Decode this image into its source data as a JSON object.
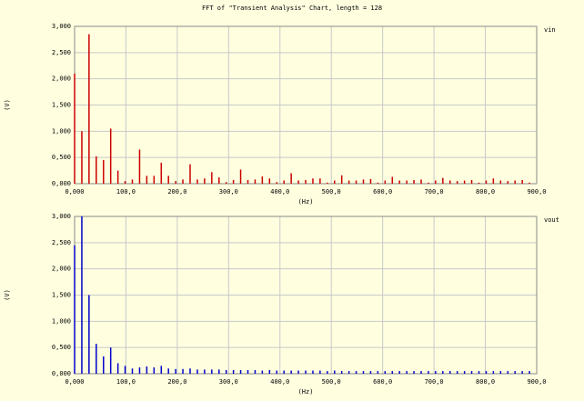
{
  "chart_data": [
    {
      "type": "bar",
      "title": "FFT of \"Transient Analysis\" Chart, length = 128",
      "xlabel": "(Hz)",
      "ylabel": "(V)",
      "x": [
        0,
        14.1,
        28.1,
        42.2,
        56.3,
        70.3,
        84.4,
        98.4,
        112.5,
        126.6,
        140.6,
        154.7,
        168.8,
        182.8,
        196.9,
        210.9,
        225,
        239.1,
        253.1,
        267.2,
        281.3,
        295.3,
        309.4,
        323.4,
        337.5,
        351.6,
        365.6,
        379.7,
        393.8,
        407.8,
        421.9,
        435.9,
        450,
        464.1,
        478.1,
        492.2,
        506.3,
        520.3,
        534.4,
        548.4,
        562.5,
        576.6,
        590.6,
        604.7,
        618.8,
        632.8,
        646.9,
        660.9,
        675,
        689.1,
        703.1,
        717.2,
        731.3,
        745.3,
        759.4,
        773.4,
        787.5,
        801.6,
        815.6,
        829.7,
        843.8,
        857.8,
        871.9,
        885.9
      ],
      "series": [
        {
          "name": "vin",
          "color": "#cc0000",
          "values": [
            2.1,
            1.0,
            2.85,
            0.52,
            0.45,
            1.05,
            0.25,
            0.05,
            0.08,
            0.65,
            0.15,
            0.15,
            0.4,
            0.15,
            0.05,
            0.08,
            0.37,
            0.08,
            0.1,
            0.22,
            0.12,
            0.03,
            0.07,
            0.27,
            0.07,
            0.08,
            0.14,
            0.1,
            0.03,
            0.06,
            0.2,
            0.06,
            0.07,
            0.1,
            0.1,
            0.02,
            0.06,
            0.16,
            0.06,
            0.06,
            0.08,
            0.09,
            0.02,
            0.06,
            0.13,
            0.06,
            0.06,
            0.07,
            0.08,
            0.02,
            0.06,
            0.11,
            0.06,
            0.05,
            0.06,
            0.07,
            0.02,
            0.06,
            0.1,
            0.06,
            0.05,
            0.06,
            0.07,
            0.02
          ]
        }
      ],
      "xlim": [
        0,
        900
      ],
      "xticks": [
        {
          "value": 0,
          "label": "0,000"
        },
        {
          "value": 100,
          "label": "100,0"
        },
        {
          "value": 200,
          "label": "200,0"
        },
        {
          "value": 300,
          "label": "300,0"
        },
        {
          "value": 400,
          "label": "400,0"
        },
        {
          "value": 500,
          "label": "500,0"
        },
        {
          "value": 600,
          "label": "600,0"
        },
        {
          "value": 700,
          "label": "700,0"
        },
        {
          "value": 800,
          "label": "800,0"
        },
        {
          "value": 900,
          "label": "900,0"
        }
      ],
      "ylim": [
        0,
        3
      ],
      "yticks": [
        {
          "value": 0,
          "label": "0,000"
        },
        {
          "value": 0.5,
          "label": "0,500"
        },
        {
          "value": 1,
          "label": "1,000"
        },
        {
          "value": 1.5,
          "label": "1,500"
        },
        {
          "value": 2,
          "label": "2,000"
        },
        {
          "value": 2.5,
          "label": "2,500"
        },
        {
          "value": 3,
          "label": "3,000"
        }
      ],
      "grid": true
    },
    {
      "type": "bar",
      "xlabel": "(Hz)",
      "ylabel": "(V)",
      "x": [
        0,
        14.1,
        28.1,
        42.2,
        56.3,
        70.3,
        84.4,
        98.4,
        112.5,
        126.6,
        140.6,
        154.7,
        168.8,
        182.8,
        196.9,
        210.9,
        225,
        239.1,
        253.1,
        267.2,
        281.3,
        295.3,
        309.4,
        323.4,
        337.5,
        351.6,
        365.6,
        379.7,
        393.8,
        407.8,
        421.9,
        435.9,
        450,
        464.1,
        478.1,
        492.2,
        506.3,
        520.3,
        534.4,
        548.4,
        562.5,
        576.6,
        590.6,
        604.7,
        618.8,
        632.8,
        646.9,
        660.9,
        675,
        689.1,
        703.1,
        717.2,
        731.3,
        745.3,
        759.4,
        773.4,
        787.5,
        801.6,
        815.6,
        829.7,
        843.8,
        857.8,
        871.9,
        885.9
      ],
      "series": [
        {
          "name": "vout",
          "color": "#0000cc",
          "values": [
            2.45,
            3.0,
            1.5,
            0.57,
            0.33,
            0.5,
            0.2,
            0.15,
            0.1,
            0.12,
            0.14,
            0.12,
            0.15,
            0.1,
            0.09,
            0.09,
            0.1,
            0.08,
            0.08,
            0.08,
            0.08,
            0.07,
            0.07,
            0.07,
            0.07,
            0.07,
            0.06,
            0.07,
            0.06,
            0.06,
            0.06,
            0.06,
            0.06,
            0.06,
            0.06,
            0.05,
            0.06,
            0.05,
            0.05,
            0.05,
            0.05,
            0.05,
            0.05,
            0.05,
            0.05,
            0.05,
            0.05,
            0.05,
            0.05,
            0.05,
            0.05,
            0.05,
            0.05,
            0.05,
            0.05,
            0.05,
            0.05,
            0.05,
            0.05,
            0.05,
            0.05,
            0.05,
            0.05,
            0.05
          ]
        }
      ],
      "xlim": [
        0,
        900
      ],
      "xticks": [
        {
          "value": 0,
          "label": "0,000"
        },
        {
          "value": 100,
          "label": "100,0"
        },
        {
          "value": 200,
          "label": "200,0"
        },
        {
          "value": 300,
          "label": "300,0"
        },
        {
          "value": 400,
          "label": "400,0"
        },
        {
          "value": 500,
          "label": "500,0"
        },
        {
          "value": 600,
          "label": "600,0"
        },
        {
          "value": 700,
          "label": "700,0"
        },
        {
          "value": 800,
          "label": "800,0"
        },
        {
          "value": 900,
          "label": "900,0"
        }
      ],
      "ylim": [
        0,
        3
      ],
      "yticks": [
        {
          "value": 0,
          "label": "0,000"
        },
        {
          "value": 0.5,
          "label": "0,500"
        },
        {
          "value": 1,
          "label": "1,000"
        },
        {
          "value": 1.5,
          "label": "1,500"
        },
        {
          "value": 2,
          "label": "2,000"
        },
        {
          "value": 2.5,
          "label": "2,500"
        },
        {
          "value": 3,
          "label": "3,000"
        }
      ],
      "grid": true
    }
  ]
}
